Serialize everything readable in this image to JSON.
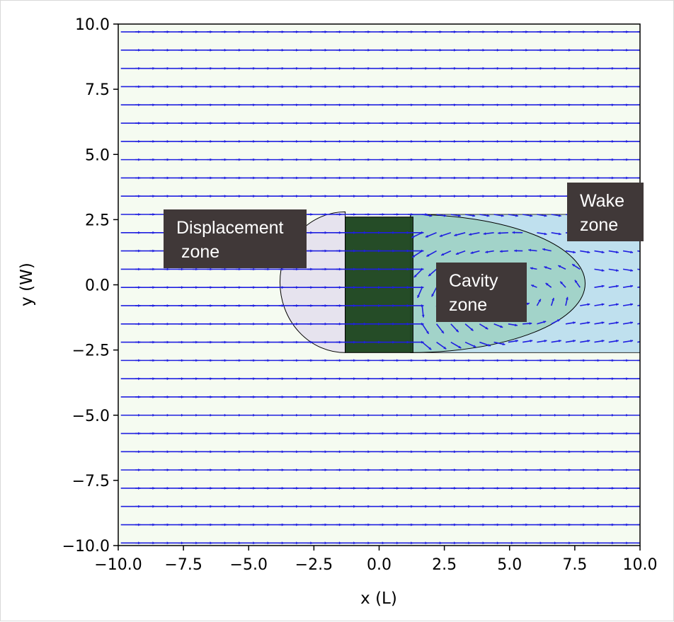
{
  "chart_data": {
    "type": "quiver",
    "xlabel": "x (L)",
    "ylabel": "y (W)",
    "xlim": [
      -10.0,
      10.0
    ],
    "ylim": [
      -10.0,
      10.0
    ],
    "xticks": [
      "−10.0",
      "−7.5",
      "−5.0",
      "−2.5",
      "0.0",
      "2.5",
      "5.0",
      "7.5",
      "10.0"
    ],
    "yticks": [
      "10.0",
      "7.5",
      "5.0",
      "2.5",
      "0.0",
      "−2.5",
      "−5.0",
      "−7.5",
      "−10.0"
    ],
    "xtick_values": [
      -10,
      -7.5,
      -5,
      -2.5,
      0,
      2.5,
      5,
      7.5,
      10
    ],
    "ytick_values": [
      10,
      7.5,
      5,
      2.5,
      0,
      -2.5,
      -5,
      -7.5,
      -10
    ],
    "grid": false,
    "background_color": "#f5fbf1",
    "arrow_color": "#1f1fe0",
    "vector_field": {
      "x_range": [
        -10,
        10
      ],
      "y_range": [
        -10,
        10
      ],
      "spacing": 0.7,
      "freestream": [
        1.0,
        0.0
      ]
    },
    "building": {
      "x": [
        -1.3,
        1.3
      ],
      "y": [
        -2.6,
        2.6
      ],
      "color": "#1e4620"
    },
    "zones": [
      {
        "name": "displacement",
        "label_lines": [
          "Displacement",
          " zone"
        ],
        "shape": "half-ellipse-upstream",
        "x": [
          -3.8,
          -1.3
        ],
        "y": [
          -2.6,
          2.8
        ],
        "color": "#e6e3ee"
      },
      {
        "name": "cavity",
        "label_lines": [
          "Cavity",
          "zone"
        ],
        "shape": "half-ellipse-downstream",
        "x": [
          1.2,
          7.9
        ],
        "y": [
          -2.6,
          2.7
        ],
        "color": "#9ed2c4"
      },
      {
        "name": "wake",
        "label_lines": [
          "Wake",
          "zone"
        ],
        "shape": "rectangle",
        "x": [
          1.2,
          10.0
        ],
        "y": [
          -2.6,
          2.7
        ],
        "color": "#bfe0ee"
      }
    ],
    "label_box_color": "#403838"
  }
}
